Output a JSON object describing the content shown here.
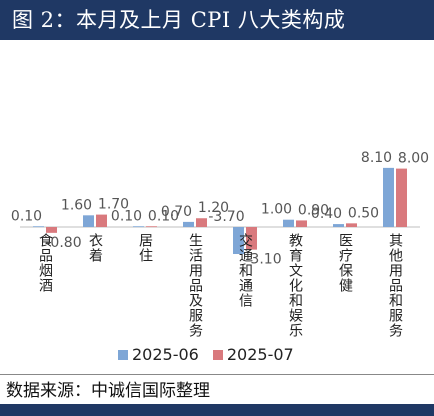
{
  "title": "图 2：本月及上月 CPI 八大类构成",
  "source": "数据来源：中诚信国际整理",
  "chart_data": {
    "type": "bar",
    "categories": [
      "食品烟酒",
      "衣着",
      "居住",
      "生活用品及服务",
      "交通和通信",
      "教育文化和娱乐",
      "医疗保健",
      "其他用品和服务"
    ],
    "series": [
      {
        "name": "2025-06",
        "color": "#7ea6d6",
        "values": [
          0.1,
          1.6,
          0.1,
          0.7,
          -3.7,
          1.0,
          0.4,
          8.1
        ],
        "labels": [
          "0.10",
          "1.60",
          "0.10",
          "0.70",
          "-3.70",
          "1.00",
          "0.40",
          "8.10"
        ]
      },
      {
        "name": "2025-07",
        "color": "#d9797d",
        "values": [
          -0.8,
          1.7,
          0.1,
          1.2,
          -3.1,
          0.9,
          0.5,
          8.0
        ],
        "labels": [
          "-0.80",
          "1.70",
          "0.10",
          "1.20",
          "-3.10",
          "0.90",
          "0.50",
          "8.00"
        ]
      }
    ],
    "ylim": [
      -4,
      9
    ],
    "grid": false,
    "legend": "bottom"
  }
}
